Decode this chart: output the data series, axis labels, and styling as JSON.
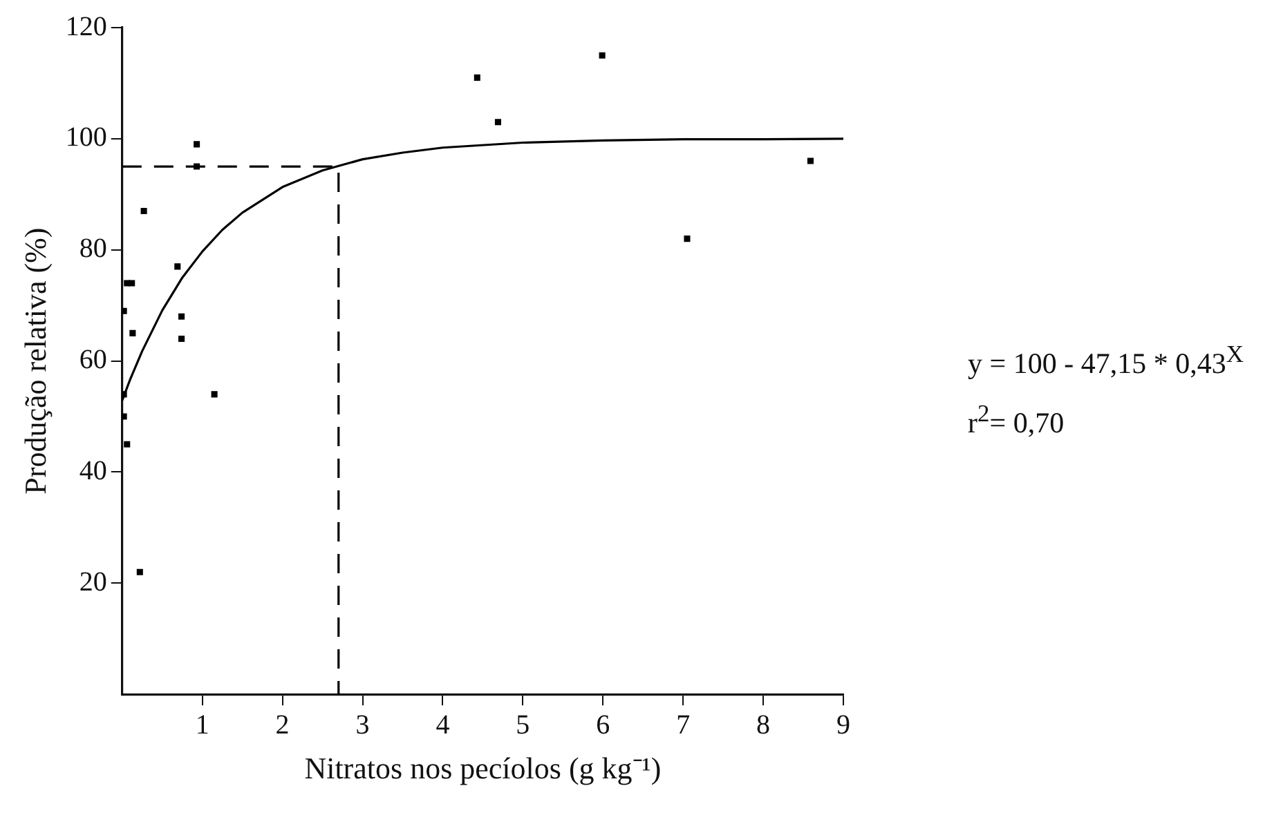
{
  "chart_data": {
    "type": "scatter",
    "xlabel": "Nitratos nos pecíolos (g kg⁻¹)",
    "ylabel": "Produção relativa (%)",
    "xlim": [
      0,
      9
    ],
    "xticks": [
      1,
      2,
      3,
      4,
      5,
      6,
      7,
      8,
      9
    ],
    "ylim": [
      0,
      120
    ],
    "yticks": [
      20,
      40,
      60,
      80,
      100,
      120
    ],
    "grid": false,
    "legend": false,
    "annotations": [
      "y = 100 - 47,15 * 0,43$^{X}$",
      "r$^{2}$= 0,70"
    ],
    "series": [
      {
        "color": "#000000",
        "marker": "square",
        "x": [
          0.93,
          0.93,
          0.27,
          0.69,
          0.06,
          0.12,
          0.02,
          0.13,
          0.74,
          0.74,
          1.15,
          0.02,
          0.02,
          0.06,
          0.22,
          5.99,
          4.43,
          4.69,
          8.59,
          7.05
        ],
        "values": [
          99,
          95,
          87,
          77,
          74,
          74,
          69,
          65,
          68,
          64,
          54,
          54,
          50,
          45,
          22,
          115,
          111,
          103,
          96,
          82
        ]
      },
      {
        "type": "line",
        "color": "#000000",
        "marker": "none",
        "line_style": "solid",
        "x": [
          0,
          0.1,
          0.25,
          0.5,
          0.75,
          1,
          1.25,
          1.5,
          2,
          2.5,
          3,
          3.5,
          4,
          5,
          6,
          7,
          8,
          9
        ],
        "values": [
          52.9,
          56.7,
          61.8,
          69.1,
          75.0,
          79.7,
          83.6,
          86.7,
          91.3,
          94.3,
          96.3,
          97.5,
          98.4,
          99.3,
          99.7,
          99.9,
          99.9,
          100.0
        ]
      },
      {
        "type": "line",
        "color": "#000000",
        "marker": "none",
        "line_style": "dashed",
        "x": [
          0,
          2.7,
          2.7
        ],
        "values": [
          95,
          95,
          0
        ]
      }
    ]
  }
}
